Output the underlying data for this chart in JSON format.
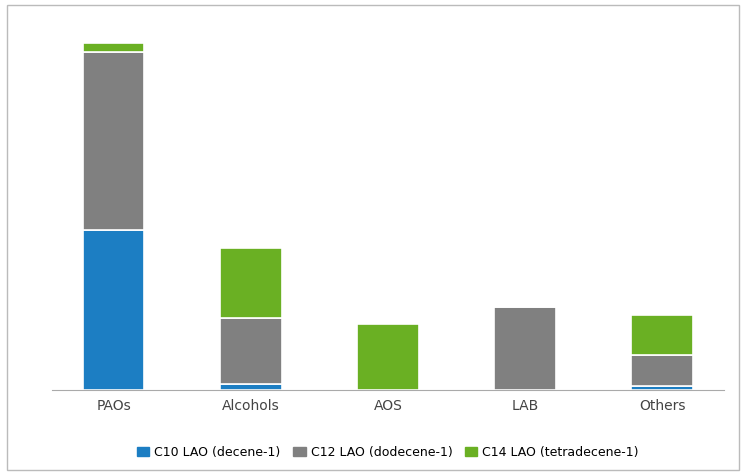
{
  "categories": [
    "PAOs",
    "Alcohols",
    "AOS",
    "LAB",
    "Others"
  ],
  "c10_values": [
    340,
    12,
    0,
    0,
    8
  ],
  "c12_values": [
    380,
    140,
    0,
    175,
    65
  ],
  "c14_values": [
    18,
    150,
    140,
    0,
    85
  ],
  "colors": {
    "c10": "#1c7ec3",
    "c12": "#808080",
    "c14": "#6ab023"
  },
  "legend_labels": [
    "C10 LAO (decene-1)",
    "C12 LAO (dodecene-1)",
    "C14 LAO (tetradecene-1)"
  ],
  "background_color": "#ffffff",
  "bar_width": 0.45,
  "edge_color": "#ffffff",
  "edge_linewidth": 1.2,
  "ylim": [
    0,
    780
  ],
  "title": "",
  "xlabel": "",
  "ylabel": ""
}
